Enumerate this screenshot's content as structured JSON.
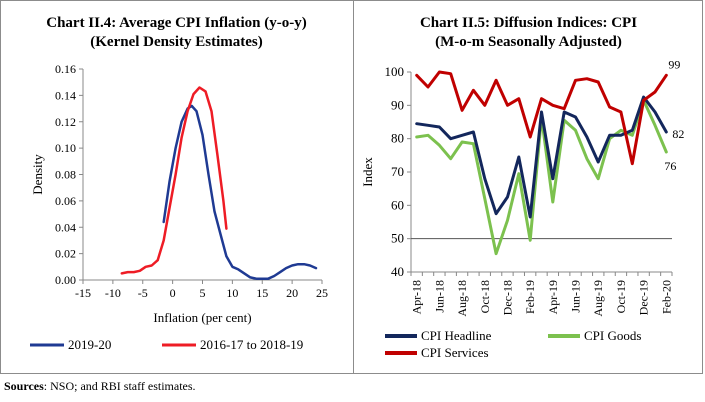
{
  "source": {
    "label": "Sources",
    "text": ": NSO; and RBI staff estimates."
  },
  "chart_data": [
    {
      "type": "line",
      "title_line1": "Chart II.4: Average CPI Inflation (y-o-y)",
      "title_line2": "(Kernel Density Estimates)",
      "xlabel": "Inflation (per cent)",
      "ylabel": "Density",
      "xlim": [
        -15,
        25
      ],
      "ylim": [
        0,
        0.16
      ],
      "xticks": [
        "-15",
        "-10",
        "-5",
        "0",
        "5",
        "10",
        "15",
        "20",
        "25"
      ],
      "yticks": [
        "0.00",
        "0.02",
        "0.04",
        "0.06",
        "0.08",
        "0.10",
        "0.12",
        "0.14",
        "0.16"
      ],
      "series": [
        {
          "name": "2019-20",
          "color": "#1f3a93",
          "points": [
            [
              -1.5,
              0.044
            ],
            [
              -0.5,
              0.075
            ],
            [
              0.5,
              0.1
            ],
            [
              1.5,
              0.12
            ],
            [
              2.5,
              0.13
            ],
            [
              3.2,
              0.132
            ],
            [
              4,
              0.128
            ],
            [
              5,
              0.11
            ],
            [
              6,
              0.08
            ],
            [
              7,
              0.052
            ],
            [
              8,
              0.035
            ],
            [
              9,
              0.018
            ],
            [
              10,
              0.01
            ],
            [
              11,
              0.008
            ],
            [
              12,
              0.005
            ],
            [
              13,
              0.002
            ],
            [
              14,
              0.001
            ],
            [
              16,
              0.001
            ],
            [
              17,
              0.003
            ],
            [
              18,
              0.006
            ],
            [
              19,
              0.009
            ],
            [
              20,
              0.011
            ],
            [
              21,
              0.012
            ],
            [
              22,
              0.012
            ],
            [
              23,
              0.011
            ],
            [
              24,
              0.009
            ]
          ]
        },
        {
          "name": "2016-17 to 2018-19",
          "color": "#ee1c25",
          "points": [
            [
              -8.5,
              0.005
            ],
            [
              -7.5,
              0.006
            ],
            [
              -6.5,
              0.006
            ],
            [
              -5.5,
              0.007
            ],
            [
              -4.5,
              0.01
            ],
            [
              -3.5,
              0.011
            ],
            [
              -2.5,
              0.015
            ],
            [
              -1.5,
              0.03
            ],
            [
              -0.5,
              0.055
            ],
            [
              0.5,
              0.08
            ],
            [
              1.5,
              0.108
            ],
            [
              2.5,
              0.128
            ],
            [
              3.5,
              0.141
            ],
            [
              4.5,
              0.146
            ],
            [
              5.5,
              0.143
            ],
            [
              6.5,
              0.128
            ],
            [
              7.5,
              0.095
            ],
            [
              8.5,
              0.06
            ],
            [
              9,
              0.039
            ]
          ]
        }
      ]
    },
    {
      "type": "line",
      "title_line1": "Chart II.5: Diffusion Indices: CPI",
      "title_line2": "(M-o-m Seasonally Adjusted)",
      "ylabel": "Index",
      "ylim": [
        40,
        100
      ],
      "yticks": [
        "40",
        "50",
        "60",
        "70",
        "80",
        "90",
        "100"
      ],
      "reference_line": 50,
      "categories": [
        "Apr-18",
        "May-18",
        "Jun-18",
        "Jul-18",
        "Aug-18",
        "Sep-18",
        "Oct-18",
        "Nov-18",
        "Dec-18",
        "Jan-19",
        "Feb-19",
        "Mar-19",
        "Apr-19",
        "May-19",
        "Jun-19",
        "Jul-19",
        "Aug-19",
        "Sep-19",
        "Oct-19",
        "Nov-19",
        "Dec-19",
        "Jan-20",
        "Feb-20"
      ],
      "tick_labels": [
        "Apr-18",
        "Jun-18",
        "Aug-18",
        "Oct-18",
        "Dec-18",
        "Feb-19",
        "Apr-19",
        "Jun-19",
        "Aug-19",
        "Oct-19",
        "Dec-19",
        "Feb-20"
      ],
      "series": [
        {
          "name": "CPI Headline",
          "color": "#13275c",
          "end_label": "82",
          "values": [
            84.5,
            84,
            83.5,
            80,
            81,
            82,
            68,
            57.5,
            62.5,
            74.5,
            56.5,
            88,
            68,
            88,
            86.5,
            80.5,
            73,
            81,
            81,
            82.5,
            92.5,
            88,
            82
          ]
        },
        {
          "name": "CPI Goods",
          "color": "#7cc14e",
          "end_label": "76",
          "values": [
            80.5,
            81,
            78,
            74,
            79,
            78.5,
            62,
            45.5,
            55.5,
            69.5,
            49.5,
            86.5,
            61,
            85.5,
            82.5,
            74,
            68,
            80,
            82.5,
            81,
            91.5,
            84,
            76
          ]
        },
        {
          "name": "CPI Services",
          "color": "#c00000",
          "end_label": "99",
          "values": [
            99,
            95.5,
            100,
            99.5,
            88.5,
            94.5,
            90,
            97.5,
            90,
            92,
            80.5,
            92,
            90,
            89,
            97.5,
            98,
            97,
            89.5,
            88,
            72.5,
            91.5,
            94,
            99
          ]
        }
      ]
    }
  ]
}
